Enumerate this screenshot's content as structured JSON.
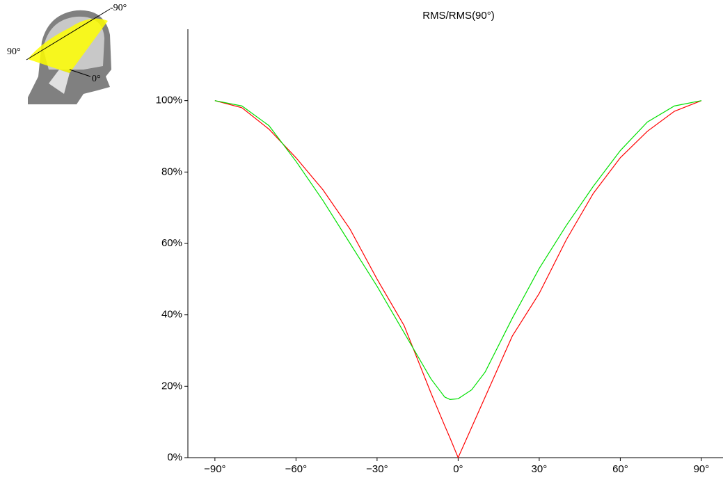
{
  "chart_data": {
    "type": "line",
    "title": "RMS/RMS(90°)",
    "x": [
      -90,
      -80,
      -70,
      -60,
      -50,
      -40,
      -30,
      -20,
      -10,
      -5,
      -3,
      0,
      5,
      10,
      20,
      30,
      40,
      50,
      60,
      70,
      80,
      90
    ],
    "series": [
      {
        "color": "#ff0000",
        "values": [
          100,
          98,
          92,
          84,
          75,
          64,
          50,
          37,
          18,
          9,
          5.5,
          0,
          8.5,
          17,
          34,
          46,
          61,
          74,
          84,
          91.4,
          97,
          100
        ]
      },
      {
        "color": "#00e000",
        "values": [
          100,
          98.5,
          93,
          83,
          72,
          60,
          48,
          35,
          22,
          17,
          16.3,
          16.5,
          19,
          24,
          39,
          53,
          65,
          76,
          86,
          94,
          98.5,
          100
        ]
      }
    ],
    "xlim": [
      -100,
      98
    ],
    "ylim": [
      0,
      120
    ],
    "xticks": [
      {
        "value": -90,
        "label": "−90°"
      },
      {
        "value": -60,
        "label": "−60°"
      },
      {
        "value": -30,
        "label": "−30°"
      },
      {
        "value": 0,
        "label": "0°"
      },
      {
        "value": 30,
        "label": "30°"
      },
      {
        "value": 60,
        "label": "60°"
      },
      {
        "value": 90,
        "label": "90°"
      }
    ],
    "yticks": [
      {
        "value": 0,
        "label": "0%"
      },
      {
        "value": 20,
        "label": "20%"
      },
      {
        "value": 40,
        "label": "40%"
      },
      {
        "value": 60,
        "label": "60%"
      },
      {
        "value": 80,
        "label": "80%"
      },
      {
        "value": 100,
        "label": "100%"
      }
    ],
    "grid": false
  },
  "inset": {
    "labels": [
      "-90°",
      "90°",
      "0°"
    ]
  }
}
